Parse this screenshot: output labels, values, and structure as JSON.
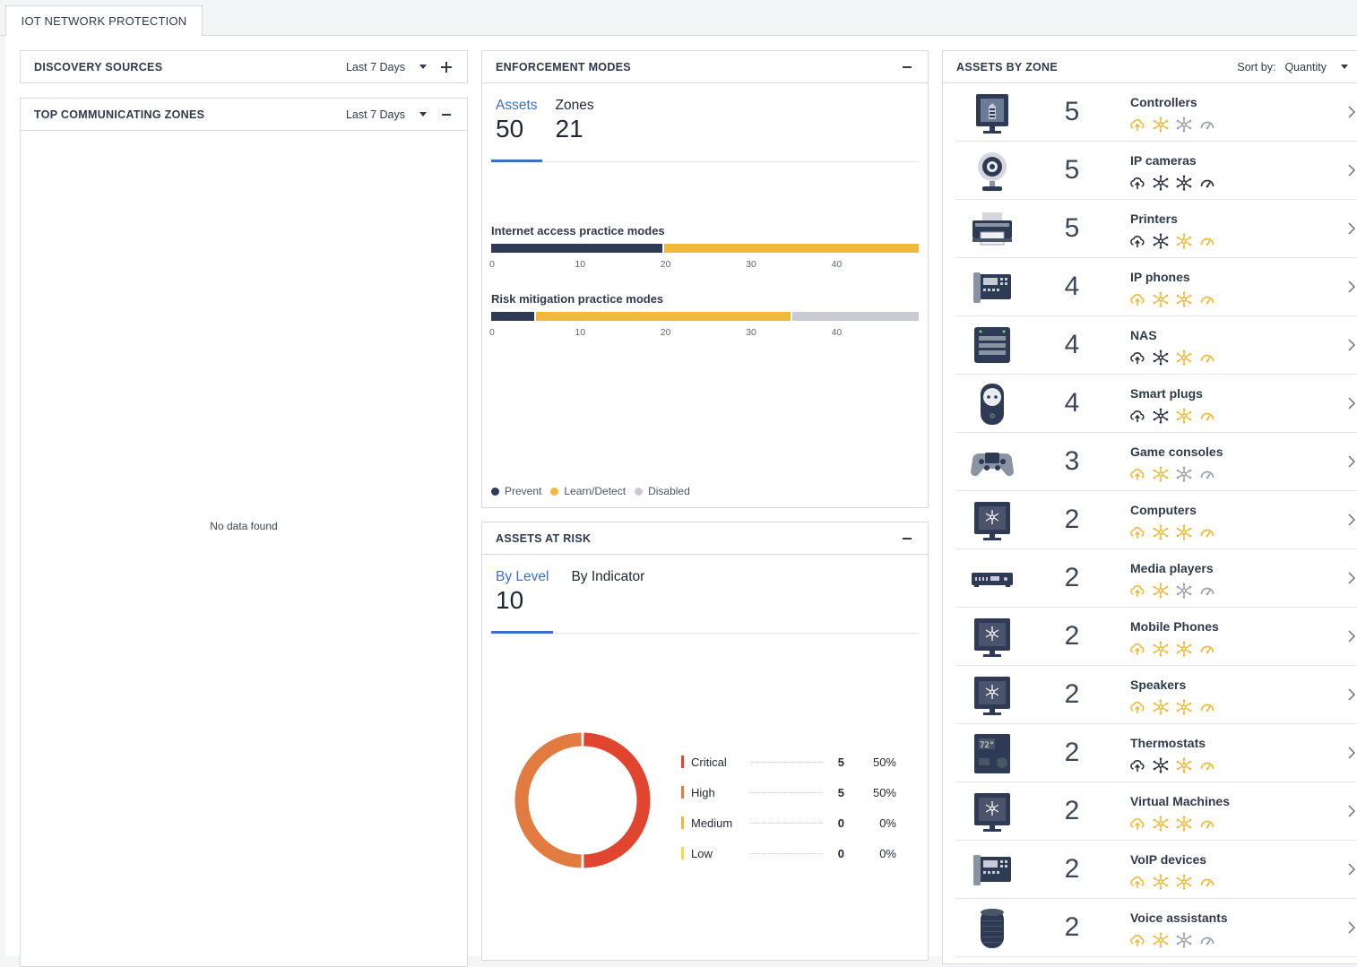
{
  "tab": {
    "label": "IOT NETWORK PROTECTION"
  },
  "discovery": {
    "title": "DISCOVERY SOURCES",
    "range": "Last 7 Days"
  },
  "topzones": {
    "title": "TOP COMMUNICATING ZONES",
    "range": "Last 7 Days",
    "empty": "No data found"
  },
  "enforcement": {
    "title": "ENFORCEMENT MODES",
    "tabs": [
      {
        "label": "Assets",
        "value": "50"
      },
      {
        "label": "Zones",
        "value": "21"
      }
    ],
    "internet_title": "Internet access practice modes",
    "risk_title": "Risk mitigation practice modes",
    "ticks": [
      "0",
      "10",
      "20",
      "30",
      "40"
    ],
    "legend": [
      "Prevent",
      "Learn/Detect",
      "Disabled"
    ],
    "colors": {
      "prevent": "#2f3a55",
      "learn": "#f0b93a",
      "disabled": "#c8ccd2"
    }
  },
  "chart_data": {
    "type": "bar",
    "orientation": "horizontal-stacked",
    "categories": [
      "Internet access practice modes",
      "Risk mitigation practice modes"
    ],
    "series": [
      {
        "name": "Prevent",
        "values": [
          20,
          5
        ]
      },
      {
        "name": "Learn/Detect",
        "values": [
          30,
          30
        ]
      },
      {
        "name": "Disabled",
        "values": [
          0,
          15
        ]
      }
    ],
    "xlim": [
      0,
      50
    ],
    "xticks": [
      0,
      10,
      20,
      30,
      40
    ]
  },
  "risk": {
    "title": "ASSETS AT RISK",
    "tabs": [
      {
        "label": "By Level",
        "value": "10"
      },
      {
        "label": "By Indicator",
        "value": ""
      }
    ],
    "levels": [
      {
        "name": "Critical",
        "count": "5",
        "pct": "50%",
        "color": "#e2452f"
      },
      {
        "name": "High",
        "count": "5",
        "pct": "50%",
        "color": "#e17b3f"
      },
      {
        "name": "Medium",
        "count": "0",
        "pct": "0%",
        "color": "#f0b93a"
      },
      {
        "name": "Low",
        "count": "0",
        "pct": "0%",
        "color": "#f5d94a"
      }
    ]
  },
  "zones": {
    "title": "ASSETS BY ZONE",
    "sort_label": "Sort by:",
    "sort_value": "Quantity",
    "items": [
      {
        "name": "Controllers",
        "qty": "5",
        "device": "controller-icon",
        "status": [
          "on",
          "on",
          "off",
          "off"
        ]
      },
      {
        "name": "IP cameras",
        "qty": "5",
        "device": "camera-icon",
        "status": [
          "dark",
          "dark",
          "dark",
          "dark"
        ]
      },
      {
        "name": "Printers",
        "qty": "5",
        "device": "printer-icon",
        "status": [
          "dark",
          "dark",
          "on",
          "on"
        ]
      },
      {
        "name": "IP phones",
        "qty": "4",
        "device": "ip-phone-icon",
        "status": [
          "on",
          "on",
          "on",
          "on"
        ]
      },
      {
        "name": "NAS",
        "qty": "4",
        "device": "nas-icon",
        "status": [
          "dark",
          "dark",
          "on",
          "on"
        ]
      },
      {
        "name": "Smart plugs",
        "qty": "4",
        "device": "smart-plug-icon",
        "status": [
          "dark",
          "dark",
          "on",
          "on"
        ]
      },
      {
        "name": "Game consoles",
        "qty": "3",
        "device": "gamepad-icon",
        "status": [
          "on",
          "on",
          "off",
          "off"
        ]
      },
      {
        "name": "Computers",
        "qty": "2",
        "device": "computer-icon",
        "status": [
          "on",
          "on",
          "on",
          "on"
        ]
      },
      {
        "name": "Media players",
        "qty": "2",
        "device": "media-player-icon",
        "status": [
          "on",
          "on",
          "off",
          "off"
        ]
      },
      {
        "name": "Mobile Phones",
        "qty": "2",
        "device": "computer-icon",
        "status": [
          "on",
          "on",
          "on",
          "on"
        ]
      },
      {
        "name": "Speakers",
        "qty": "2",
        "device": "computer-icon",
        "status": [
          "on",
          "on",
          "on",
          "on"
        ]
      },
      {
        "name": "Thermostats",
        "qty": "2",
        "device": "thermostat-icon",
        "status": [
          "dark",
          "dark",
          "on",
          "on"
        ]
      },
      {
        "name": "Virtual Machines",
        "qty": "2",
        "device": "computer-icon",
        "status": [
          "on",
          "on",
          "on",
          "on"
        ]
      },
      {
        "name": "VoIP devices",
        "qty": "2",
        "device": "ip-phone-icon",
        "status": [
          "on",
          "on",
          "on",
          "on"
        ]
      },
      {
        "name": "Voice assistants",
        "qty": "2",
        "device": "voice-assistant-icon",
        "status": [
          "on",
          "on",
          "off",
          "off"
        ]
      }
    ]
  }
}
